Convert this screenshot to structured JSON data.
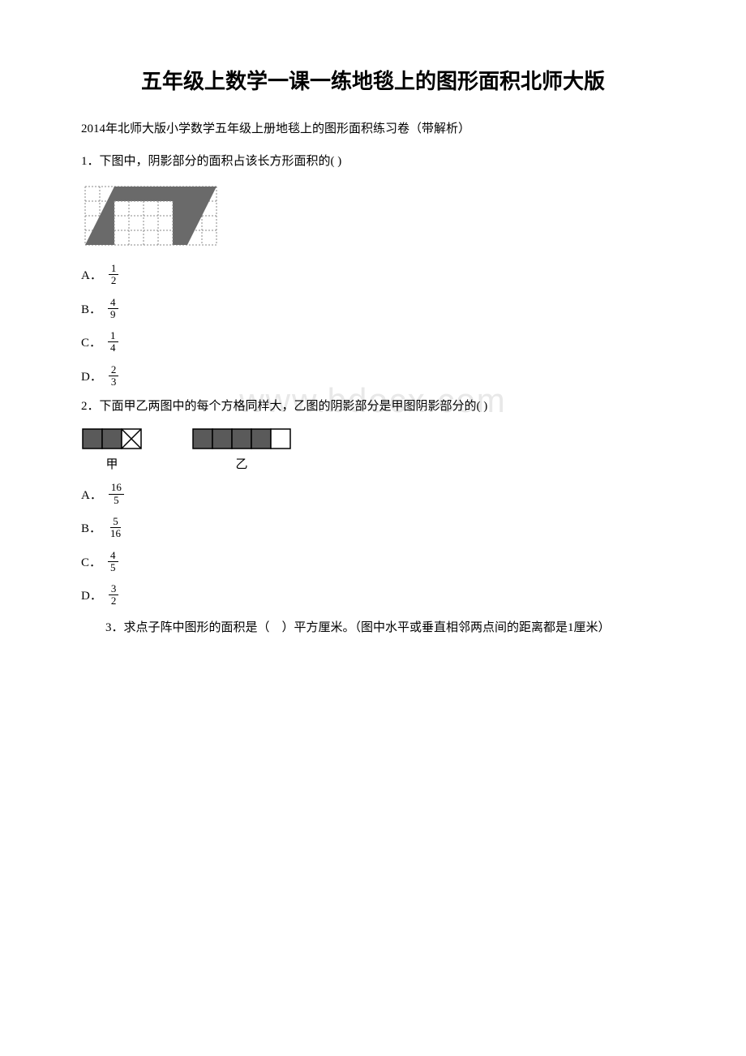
{
  "title": "五年级上数学一课一练地毯上的图形面积北师大版",
  "subtitle": "2014年北师大版小学数学五年级上册地毯上的图形面积练习卷（带解析）",
  "q1": {
    "text": "1．下图中，阴影部分的面积占该长方形面积的( )",
    "options": [
      {
        "label": "A．",
        "num": "1",
        "den": "2"
      },
      {
        "label": "B．",
        "num": "4",
        "den": "9"
      },
      {
        "label": "C．",
        "num": "1",
        "den": "4"
      },
      {
        "label": "D．",
        "num": "2",
        "den": "3"
      }
    ],
    "grid": {
      "cols": 9,
      "rows": 4,
      "cell": 18,
      "stroke_dash": "#888888",
      "fill": "#6a6a6a",
      "bg": "#ffffff"
    }
  },
  "q2": {
    "text": "2．下面甲乙两图中的每个方格同样大，乙图的阴影部分是甲图阴影部分的( )",
    "options": [
      {
        "label": "A．",
        "num": "16",
        "den": "5"
      },
      {
        "label": "B．",
        "num": "5",
        "den": "16"
      },
      {
        "label": "C．",
        "num": "4",
        "den": "5"
      },
      {
        "label": "D．",
        "num": "3",
        "den": "2"
      }
    ],
    "jia_label": "甲",
    "yi_label": "乙",
    "jia": {
      "cols": 3,
      "cell": 24,
      "fill": "#5a5a5a",
      "stroke": "#000000"
    },
    "yi": {
      "cols": 5,
      "cell": 24,
      "fill": "#5a5a5a",
      "stroke": "#000000"
    }
  },
  "q3": {
    "text": "3．求点子阵中图形的面积是（　）平方厘米。（图中水平或垂直相邻两点间的距离都是1厘米）"
  },
  "watermark": "www.bdocx.com"
}
